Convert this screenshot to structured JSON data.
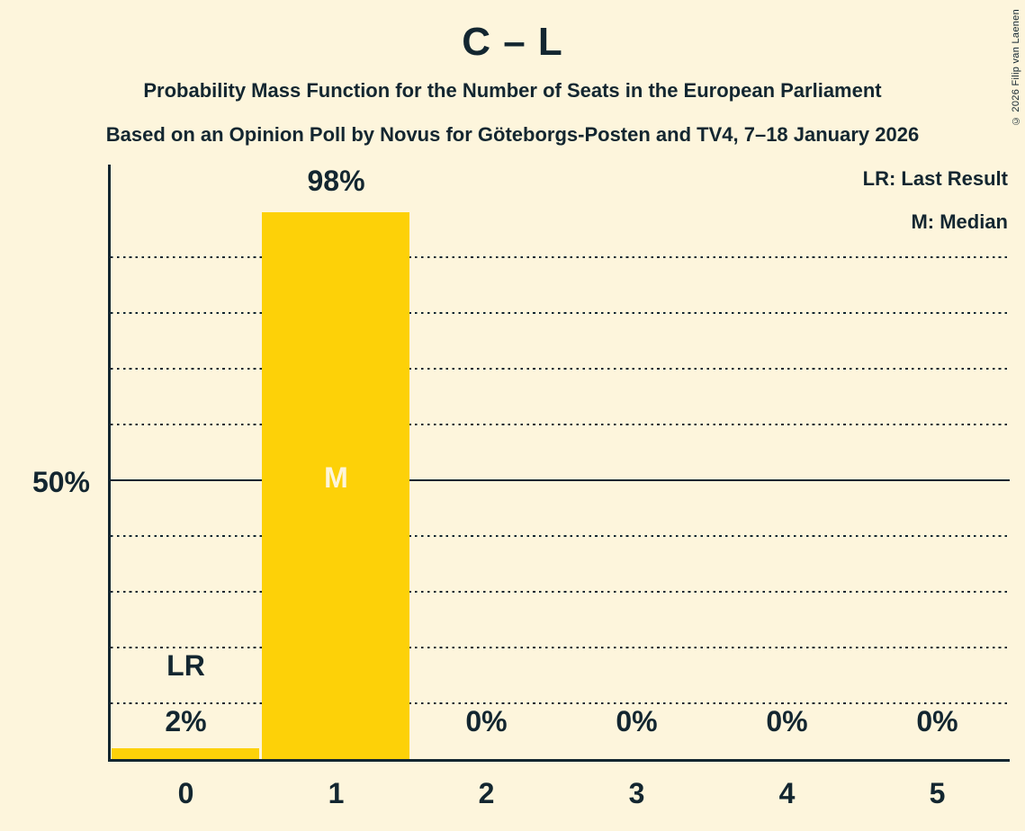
{
  "header": {
    "title": "C – L",
    "subtitle_line1": "Probability Mass Function for the Number of Seats in the European Parliament",
    "subtitle_line2": "Based on an Opinion Poll by Novus for Göteborgs-Posten and TV4, 7–18 January 2026"
  },
  "legend": {
    "last_result": "LR: Last Result",
    "median": "M: Median"
  },
  "copyright": "© 2026 Filip van Laenen",
  "colors": {
    "background": "#FDF5DC",
    "bar": "#FDD108",
    "text": "#132630"
  },
  "chart_data": {
    "type": "bar",
    "title": "C – L",
    "categories": [
      "0",
      "1",
      "2",
      "3",
      "4",
      "5"
    ],
    "values_percent": [
      2,
      98,
      0,
      0,
      0,
      0
    ],
    "value_labels": [
      "2%",
      "98%",
      "0%",
      "0%",
      "0%",
      "0%"
    ],
    "y_axis": {
      "tick_label": "50%",
      "tick_percent": 50,
      "range_percent": [
        0,
        100
      ],
      "dotted_gridlines_percent": [
        10,
        20,
        30,
        40,
        60,
        70,
        80,
        90
      ],
      "solid_gridline_percent": 50
    },
    "markers": {
      "last_result": {
        "label": "LR",
        "category": "0"
      },
      "median": {
        "label": "M",
        "category": "1"
      }
    },
    "legend_position": "top-right",
    "grid": "horizontal dotted lines every 10%, solid line at 50%"
  }
}
